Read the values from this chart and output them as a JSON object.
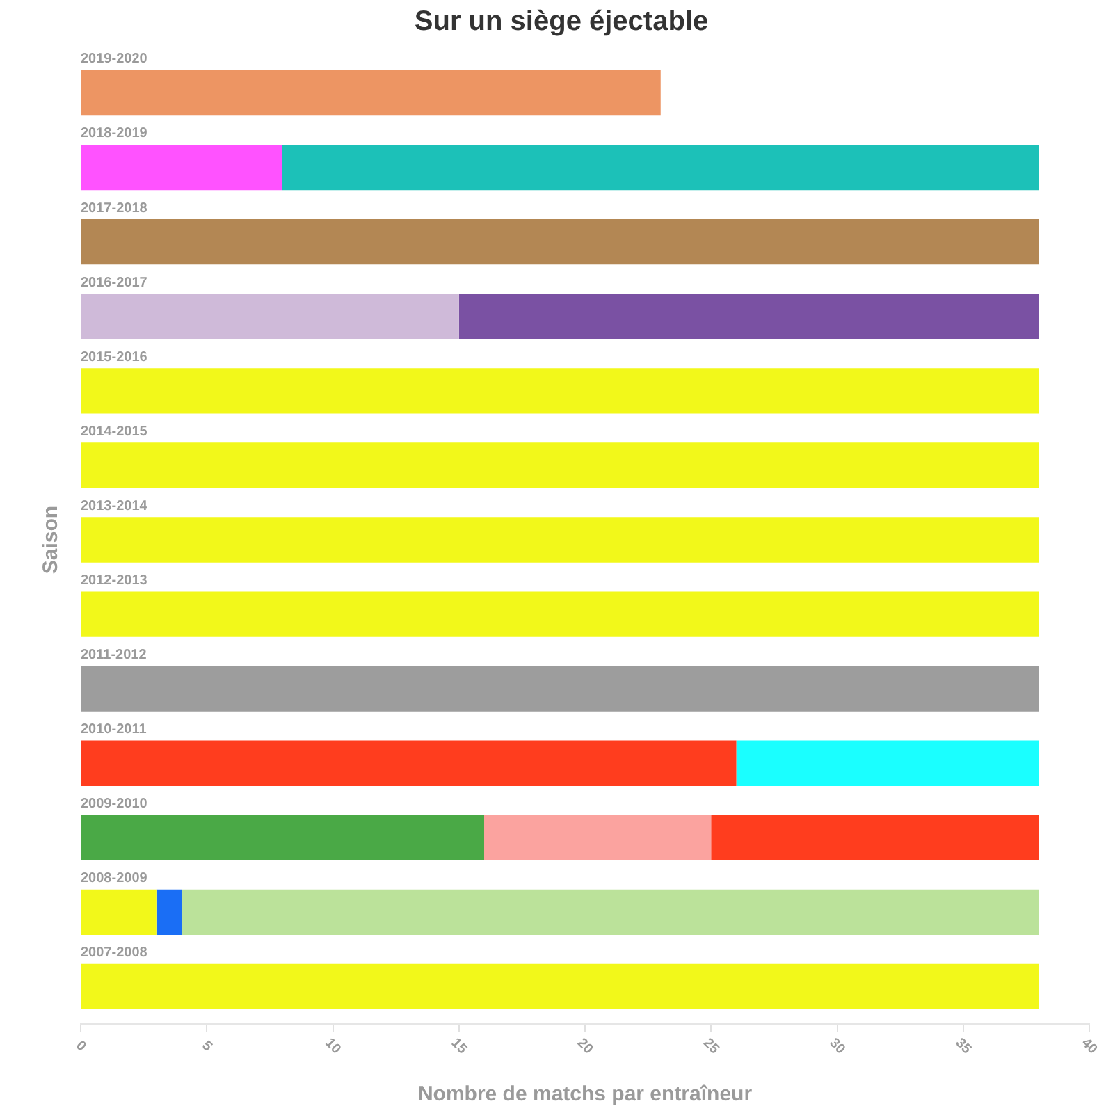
{
  "chart_data": {
    "type": "bar",
    "orientation": "horizontal",
    "stacked": true,
    "title": "Sur un siège éjectable",
    "xlabel": "Nombre de matchs par entraîneur",
    "ylabel": "Saison",
    "categories": [
      "2019-2020",
      "2018-2019",
      "2017-2018",
      "2016-2017",
      "2015-2016",
      "2014-2015",
      "2013-2014",
      "2012-2013",
      "2011-2012",
      "2010-2011",
      "2009-2010",
      "2008-2009",
      "2007-2008"
    ],
    "series": [
      {
        "values": [
          23,
          8,
          38,
          15,
          38,
          38,
          38,
          38,
          38,
          26,
          16,
          3,
          38
        ],
        "colors": [
          "#ed9563",
          "#ff52ff",
          "#b38754",
          "#cfbad9",
          "#f2f81a",
          "#f2f81a",
          "#f2f81a",
          "#f2f81a",
          "#9d9d9d",
          "#ff3d1e",
          "#4aa946",
          "#f2f81a",
          "#f2f81a"
        ]
      },
      {
        "values": [
          null,
          30,
          null,
          23,
          null,
          null,
          null,
          null,
          null,
          12,
          9,
          1,
          null
        ],
        "colors": [
          null,
          "#1cc1b8",
          null,
          "#7a51a3",
          null,
          null,
          null,
          null,
          null,
          "#1affff",
          "#fba39f",
          "#1a6ef5",
          null
        ]
      },
      {
        "values": [
          null,
          null,
          null,
          null,
          null,
          null,
          null,
          null,
          null,
          null,
          13,
          34,
          null
        ],
        "colors": [
          null,
          null,
          null,
          null,
          null,
          null,
          null,
          null,
          null,
          null,
          "#ff3d1e",
          "#bbe29a",
          null
        ]
      }
    ],
    "xlim": [
      0,
      40
    ],
    "xticks": [
      0,
      5,
      10,
      15,
      20,
      25,
      30,
      35,
      40
    ]
  }
}
